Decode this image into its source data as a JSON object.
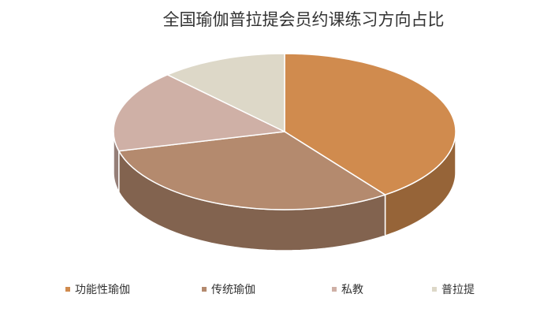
{
  "chart_data": {
    "type": "pie",
    "title": "全国瑜伽普拉提会员约课练习方向占比",
    "categories": [
      "功能性瑜伽",
      "传统瑜伽",
      "私教",
      "普拉提"
    ],
    "values": [
      40,
      31,
      17,
      12
    ],
    "colors": [
      "#D08B4E",
      "#B48A6E",
      "#CFB0A6",
      "#DDD8C8"
    ],
    "legend": "bottom"
  }
}
